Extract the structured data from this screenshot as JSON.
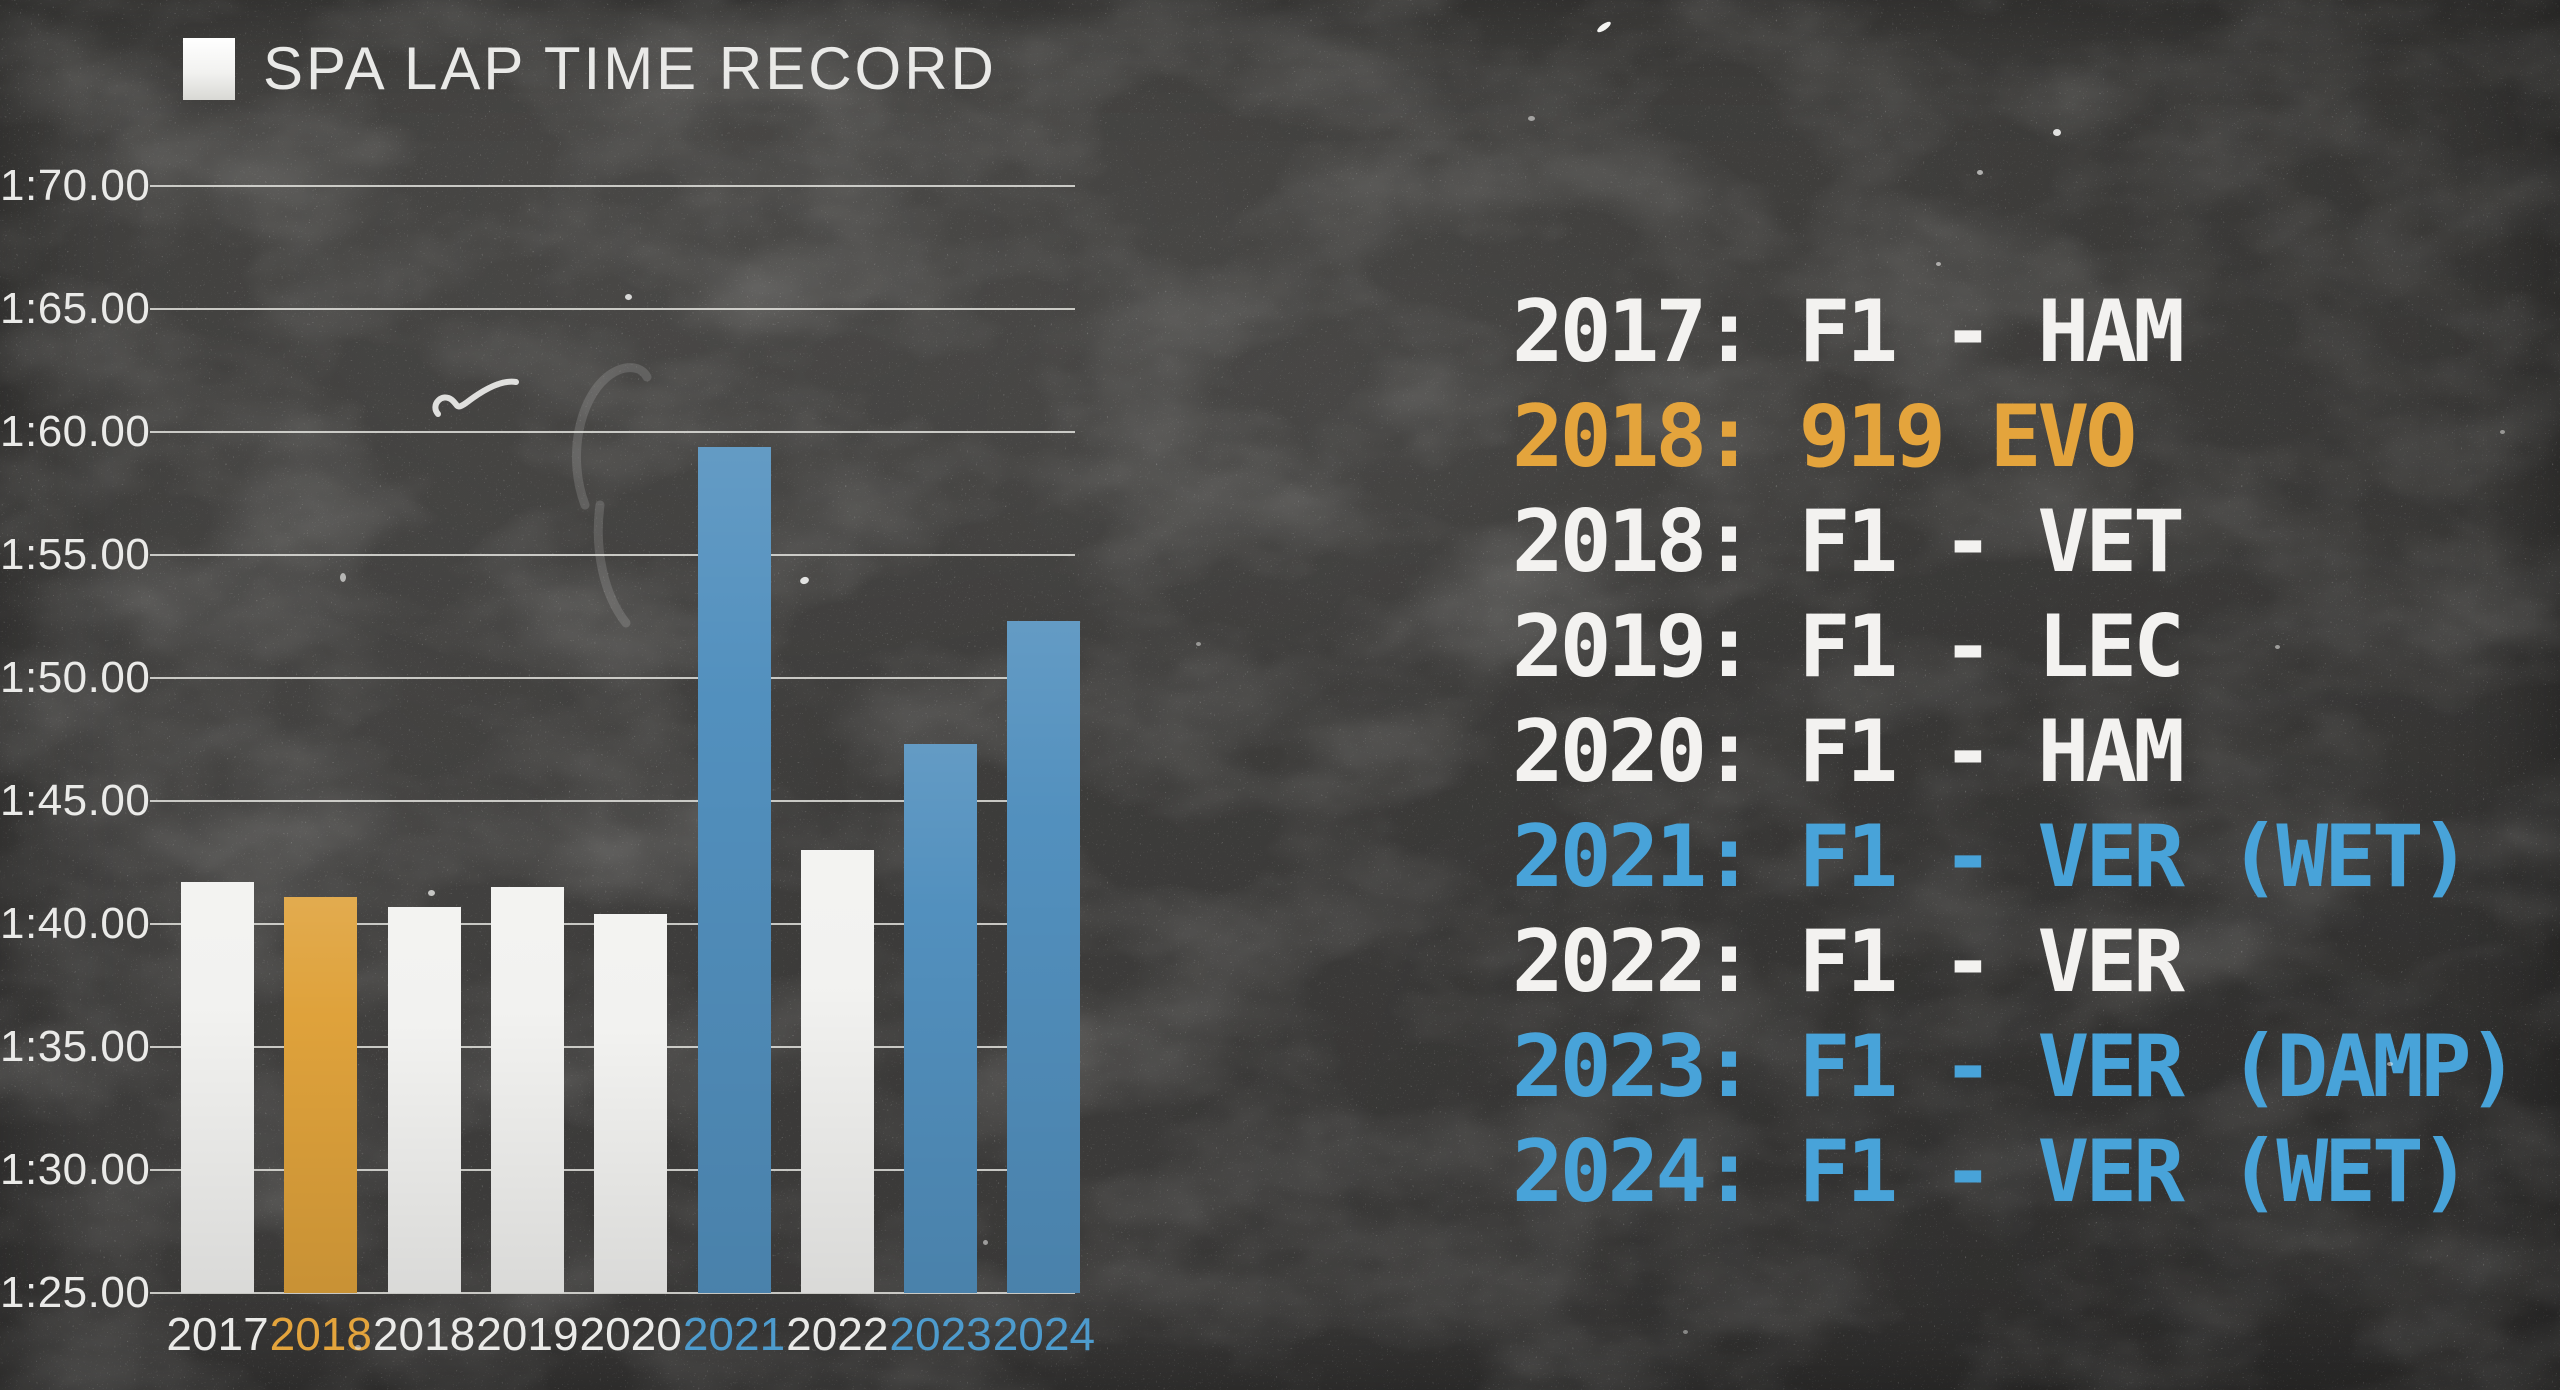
{
  "chart_data": {
    "type": "bar",
    "title": "SPA LAP TIME RECORD",
    "x_categories": [
      "2017",
      "2018",
      "2018",
      "2019",
      "2020",
      "2021",
      "2022",
      "2023",
      "2024"
    ],
    "values": [
      41.7,
      41.1,
      40.7,
      41.5,
      40.4,
      59.4,
      43.0,
      47.3,
      52.3
    ],
    "bar_styles": [
      "white",
      "orange",
      "white",
      "white",
      "white",
      "blue",
      "white",
      "blue",
      "blue"
    ],
    "y_ticks": [
      "1:70.00",
      "1:65.00",
      "1:60.00",
      "1:55.00",
      "1:50.00",
      "1:45.00",
      "1:40.00",
      "1:35.00",
      "1:30.00",
      "1:25.00"
    ],
    "y_min": 25,
    "y_max": 70,
    "grid": true,
    "legend_position": "right"
  },
  "legend": {
    "items": [
      {
        "label": "2017: F1 - HAM",
        "style": "white"
      },
      {
        "label": "2018: 919 EVO",
        "style": "orange"
      },
      {
        "label": "2018: F1 - VET",
        "style": "white"
      },
      {
        "label": "2019: F1 - LEC",
        "style": "white"
      },
      {
        "label": "2020: F1 - HAM",
        "style": "white"
      },
      {
        "label": "2021: F1 - VER (WET)",
        "style": "blue"
      },
      {
        "label": "2022: F1 - VER",
        "style": "white"
      },
      {
        "label": "2023: F1 - VER (DAMP)",
        "style": "blue"
      },
      {
        "label": "2024: F1 - VER (WET)",
        "style": "blue"
      }
    ]
  },
  "colors": {
    "background": "#3d3c3a",
    "white_bar": "#f2f2f0",
    "orange_bar": "#dfa23b",
    "blue_bar": "#5290be",
    "white_text": "#f3f2f0",
    "orange_text": "#e4a43c",
    "blue_text": "#48a3d9",
    "axis_text": "#eaeae8",
    "gridline": "#e6e6e2"
  }
}
